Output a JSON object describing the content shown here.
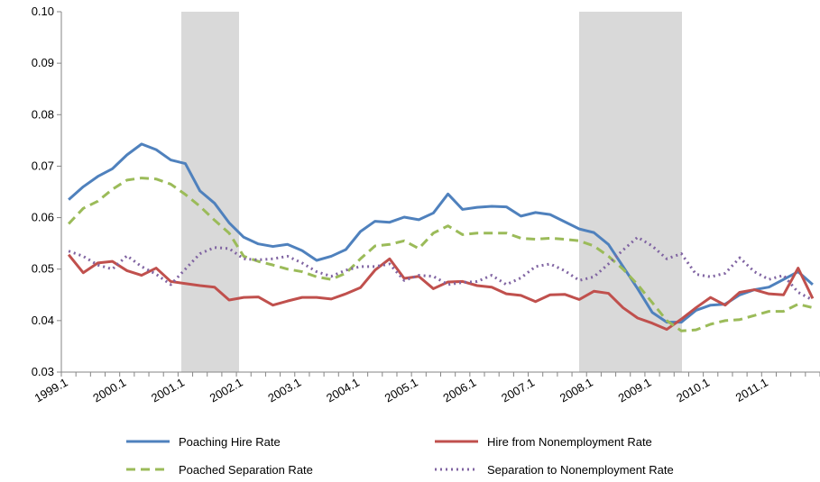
{
  "chart_data": {
    "type": "line",
    "categories": [
      "1999.1",
      null,
      null,
      null,
      "2000.1",
      null,
      null,
      null,
      "2001.1",
      null,
      null,
      null,
      "2002.1",
      null,
      null,
      null,
      "2003.1",
      null,
      null,
      null,
      "2004.1",
      null,
      null,
      null,
      "2005.1",
      null,
      null,
      null,
      "2006.1",
      null,
      null,
      null,
      "2007.1",
      null,
      null,
      null,
      "2008.1",
      null,
      null,
      null,
      "2009.1",
      null,
      null,
      null,
      "2010.1",
      null,
      null,
      null,
      "2011.1",
      null,
      null,
      null
    ],
    "series": [
      {
        "name": "Poaching Hire Rate",
        "color": "#4f81bd",
        "dash": "solid",
        "values": [
          0.0635,
          0.066,
          0.068,
          0.0695,
          0.0722,
          0.0743,
          0.0732,
          0.0712,
          0.0705,
          0.0652,
          0.0628,
          0.059,
          0.0562,
          0.0549,
          0.0544,
          0.0548,
          0.0536,
          0.0517,
          0.0525,
          0.0538,
          0.0573,
          0.0593,
          0.0591,
          0.0601,
          0.0596,
          0.0609,
          0.0646,
          0.0616,
          0.062,
          0.0622,
          0.0621,
          0.0603,
          0.061,
          0.0606,
          0.0592,
          0.0578,
          0.0571,
          0.0548,
          0.0505,
          0.0462,
          0.0416,
          0.0397,
          0.0397,
          0.042,
          0.043,
          0.0432,
          0.045,
          0.046,
          0.0465,
          0.048,
          0.0495,
          0.047
        ]
      },
      {
        "name": "Hire from Nonemployment Rate",
        "color": "#c0504d",
        "dash": "solid",
        "values": [
          0.0528,
          0.0493,
          0.0512,
          0.0515,
          0.0497,
          0.0488,
          0.0502,
          0.0476,
          0.0472,
          0.0468,
          0.0465,
          0.044,
          0.0445,
          0.0446,
          0.043,
          0.0438,
          0.0445,
          0.0445,
          0.0442,
          0.0452,
          0.0464,
          0.0498,
          0.052,
          0.0482,
          0.0486,
          0.0462,
          0.0475,
          0.0476,
          0.0468,
          0.0465,
          0.0452,
          0.0449,
          0.0437,
          0.045,
          0.0451,
          0.0441,
          0.0457,
          0.0453,
          0.0425,
          0.0405,
          0.0395,
          0.0383,
          0.0403,
          0.0425,
          0.0445,
          0.043,
          0.0455,
          0.046,
          0.0452,
          0.045,
          0.0502,
          0.0443
        ]
      },
      {
        "name": "Poached Separation Rate",
        "color": "#9bbb59",
        "dash": "dashed",
        "values": [
          0.0588,
          0.0618,
          0.0632,
          0.0655,
          0.0673,
          0.0677,
          0.0675,
          0.0665,
          0.0645,
          0.0622,
          0.0595,
          0.057,
          0.0525,
          0.0515,
          0.0508,
          0.05,
          0.0495,
          0.0485,
          0.048,
          0.0492,
          0.052,
          0.0545,
          0.0548,
          0.0555,
          0.054,
          0.057,
          0.0584,
          0.0567,
          0.057,
          0.057,
          0.057,
          0.056,
          0.0558,
          0.056,
          0.0558,
          0.0555,
          0.0545,
          0.0525,
          0.05,
          0.047,
          0.0435,
          0.04,
          0.038,
          0.0382,
          0.0393,
          0.04,
          0.0402,
          0.041,
          0.0418,
          0.0418,
          0.0432,
          0.0425
        ]
      },
      {
        "name": "Separation to Nonemployment Rate",
        "color": "#8064a2",
        "dash": "dotted",
        "values": [
          0.0535,
          0.0525,
          0.0508,
          0.05,
          0.0526,
          0.0505,
          0.049,
          0.047,
          0.05,
          0.053,
          0.0542,
          0.054,
          0.052,
          0.0518,
          0.052,
          0.0525,
          0.0512,
          0.0495,
          0.0486,
          0.0498,
          0.0505,
          0.0505,
          0.051,
          0.0478,
          0.0488,
          0.0486,
          0.047,
          0.0474,
          0.0476,
          0.0488,
          0.047,
          0.0483,
          0.0505,
          0.051,
          0.0497,
          0.0478,
          0.0485,
          0.051,
          0.0537,
          0.0562,
          0.0545,
          0.052,
          0.053,
          0.049,
          0.0485,
          0.0492,
          0.0522,
          0.0495,
          0.048,
          0.0488,
          0.0455,
          0.044
        ]
      }
    ],
    "ylim": [
      0.03,
      0.1
    ],
    "yticks": [
      0.03,
      0.04,
      0.05,
      0.06,
      0.07,
      0.08,
      0.09,
      {
        "value": 0.1,
        "label": "0.10"
      }
    ],
    "grid": false
  }
}
